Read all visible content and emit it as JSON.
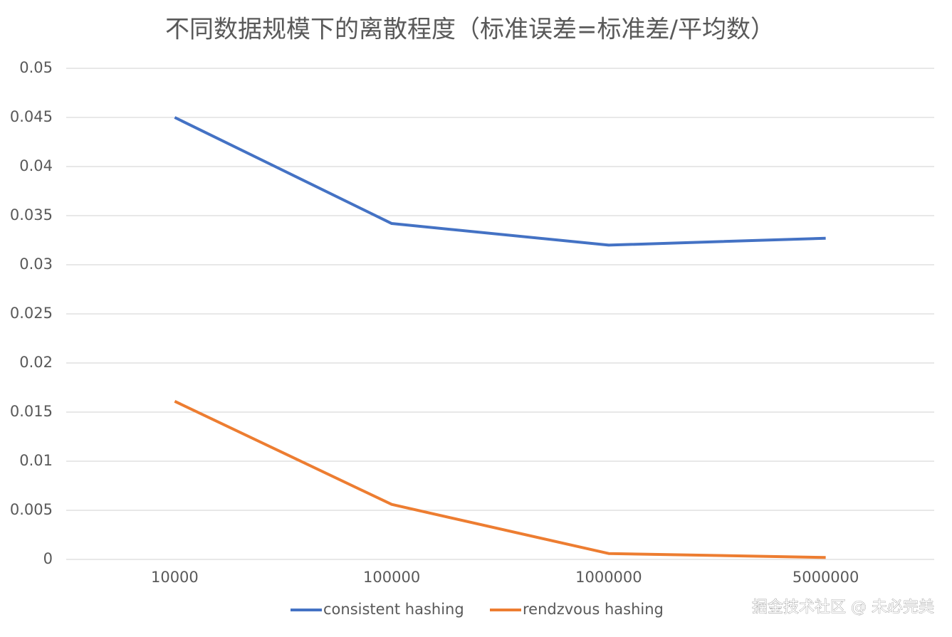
{
  "chart_data": {
    "type": "line",
    "title": "不同数据规模下的离散程度（标准误差=标准差/平均数）",
    "categories": [
      "10000",
      "100000",
      "1000000",
      "5000000"
    ],
    "series": [
      {
        "name": "consistent hashing",
        "color": "#4472c4",
        "values": [
          0.045,
          0.0342,
          0.032,
          0.0327
        ]
      },
      {
        "name": "rendzvous hashing",
        "color": "#ed7d31",
        "values": [
          0.0161,
          0.0056,
          0.0006,
          0.0002
        ]
      }
    ],
    "ylim": [
      0,
      0.05
    ],
    "yticks": [
      0,
      0.005,
      0.01,
      0.015,
      0.02,
      0.025,
      0.03,
      0.035,
      0.04,
      0.045,
      0.05
    ],
    "grid": true,
    "legend": "bottom"
  },
  "watermark": "掘金技术社区 @ 未必完美"
}
